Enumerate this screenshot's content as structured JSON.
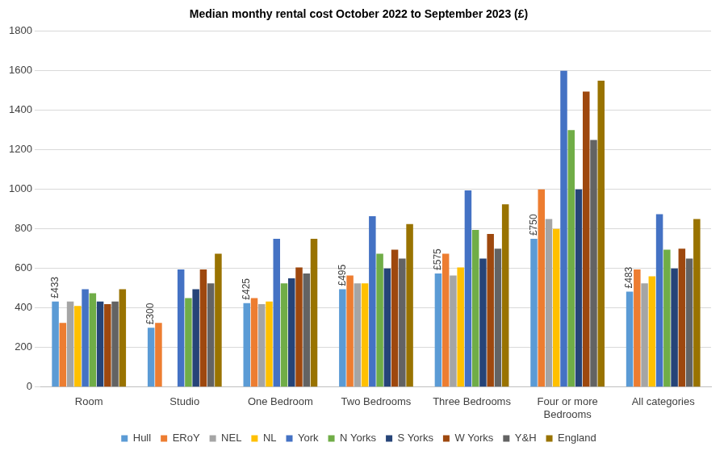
{
  "chart_data": {
    "type": "bar",
    "title": "Median monthy rental cost October 2022 to September 2023 (£)",
    "categories": [
      "Room",
      "Studio",
      "One Bedroom",
      "Two Bedrooms",
      "Three Bedrooms",
      "Four or more Bedrooms",
      "All categories"
    ],
    "series": [
      {
        "name": "Hull",
        "color": "#5B9BD5",
        "values": [
          433,
          300,
          425,
          495,
          575,
          750,
          483
        ],
        "data_labels": true,
        "value_labels": [
          "£433",
          "£300",
          "£425",
          "£495",
          "£575",
          "£750",
          "£483"
        ]
      },
      {
        "name": "ERoY",
        "color": "#ED7D31",
        "values": [
          325,
          325,
          450,
          565,
          675,
          1000,
          595
        ]
      },
      {
        "name": "NEL",
        "color": "#A5A5A5",
        "values": [
          433,
          null,
          420,
          525,
          565,
          850,
          525
        ]
      },
      {
        "name": "NL",
        "color": "#FFC000",
        "values": [
          410,
          null,
          433,
          525,
          605,
          800,
          560
        ]
      },
      {
        "name": "York",
        "color": "#4472C4",
        "values": [
          495,
          595,
          750,
          865,
          995,
          1600,
          875
        ]
      },
      {
        "name": "N Yorks",
        "color": "#70AD47",
        "values": [
          475,
          450,
          525,
          675,
          795,
          1300,
          695
        ]
      },
      {
        "name": "S Yorks",
        "color": "#264478",
        "values": [
          433,
          495,
          550,
          600,
          650,
          1000,
          600
        ]
      },
      {
        "name": "W Yorks",
        "color": "#9E480E",
        "values": [
          420,
          595,
          605,
          695,
          775,
          1495,
          700
        ]
      },
      {
        "name": "Y&H",
        "color": "#636363",
        "values": [
          433,
          525,
          575,
          650,
          700,
          1250,
          650
        ]
      },
      {
        "name": "England",
        "color": "#997300",
        "values": [
          495,
          675,
          750,
          825,
          925,
          1550,
          850
        ]
      }
    ],
    "ylim": [
      0,
      1800
    ],
    "yticks": [
      0,
      200,
      400,
      600,
      800,
      1000,
      1200,
      1400,
      1600,
      1800
    ],
    "grid": true,
    "legend": "bottom"
  }
}
